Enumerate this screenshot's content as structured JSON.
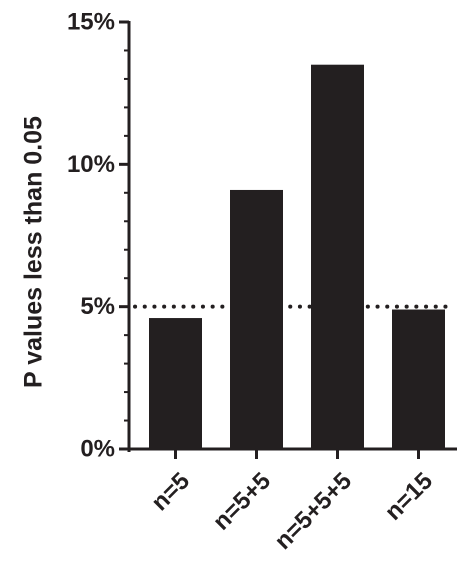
{
  "chart_data": {
    "type": "bar",
    "title": "",
    "xlabel": "",
    "ylabel": "P values less than 0.05",
    "categories": [
      "n=5",
      "n=5+5",
      "n=5+5+5",
      "n=15"
    ],
    "values": [
      4.6,
      9.1,
      13.5,
      4.9
    ],
    "value_unit": "%",
    "ylim": [
      0,
      15
    ],
    "y_ticks": [
      {
        "value": 0,
        "label": "0%"
      },
      {
        "value": 5,
        "label": "5%"
      },
      {
        "value": 10,
        "label": "10%"
      },
      {
        "value": 15,
        "label": "15%"
      }
    ],
    "y_minor_tick_step": 1,
    "reference_line": {
      "value": 5,
      "style": "dotted"
    },
    "grid": false,
    "legend": "none",
    "colors": {
      "bar": "#231f20",
      "axis": "#231f20",
      "text": "#231f20"
    }
  }
}
